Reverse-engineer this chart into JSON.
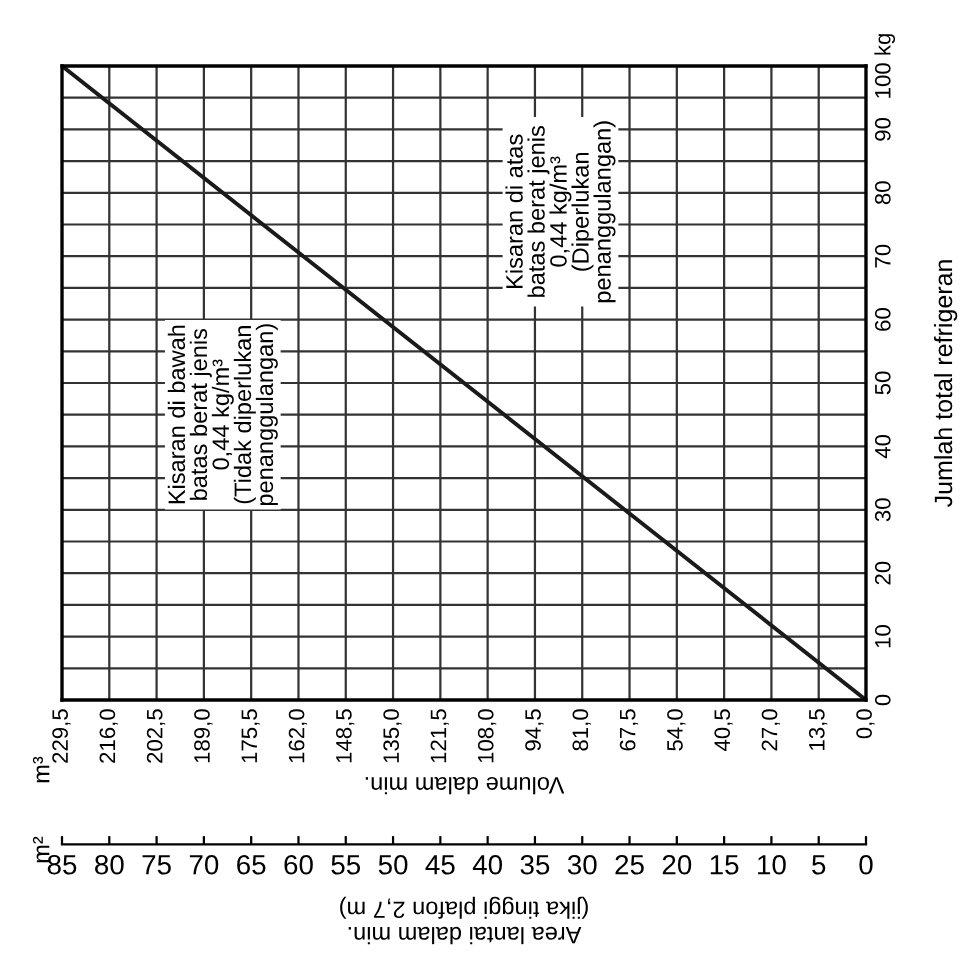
{
  "chart_data": {
    "type": "line",
    "xlabel": "Volume dalam min.",
    "x2label": "Area lantai dalam min.\n(jika tinggi plafon 2,7 m)",
    "ylabel": "Jumlah total refrigeran",
    "series": [
      {
        "color": "#1a1a1a",
        "x": [
          0,
          229.5
        ],
        "values": [
          0,
          100
        ]
      }
    ],
    "xlim": [
      229.5,
      0
    ],
    "xticks": [
      {
        "value": 229.5,
        "label": "229,5"
      },
      {
        "value": 216,
        "label": "216,0"
      },
      {
        "value": 202.5,
        "label": "202,5"
      },
      {
        "value": 189,
        "label": "189,0"
      },
      {
        "value": 175.5,
        "label": "175,5"
      },
      {
        "value": 162,
        "label": "162,0"
      },
      {
        "value": 148.5,
        "label": "148,5"
      },
      {
        "value": 135,
        "label": "135,0"
      },
      {
        "value": 121.5,
        "label": "121,5"
      },
      {
        "value": 108,
        "label": "108,0"
      },
      {
        "value": 94.5,
        "label": "94,5"
      },
      {
        "value": 81,
        "label": "81,0"
      },
      {
        "value": 67.5,
        "label": "67,5"
      },
      {
        "value": 54,
        "label": "54,0"
      },
      {
        "value": 40.5,
        "label": "40,5"
      },
      {
        "value": 27,
        "label": "27,0"
      },
      {
        "value": 13.5,
        "label": "13,5"
      },
      {
        "value": 0,
        "label": "0,0"
      }
    ],
    "x2lim": [
      85,
      0
    ],
    "x2ticks": [
      85,
      80,
      75,
      70,
      65,
      60,
      55,
      50,
      45,
      40,
      35,
      30,
      25,
      20,
      15,
      10,
      5,
      0
    ],
    "ylim": [
      0,
      100
    ],
    "yticks": [
      0,
      {
        "value": 5,
        "label": null
      },
      10,
      {
        "value": 15,
        "label": null
      },
      20,
      {
        "value": 25,
        "label": null
      },
      30,
      {
        "value": 35,
        "label": null
      },
      40,
      {
        "value": 45,
        "label": null
      },
      50,
      {
        "value": 55,
        "label": null
      },
      60,
      {
        "value": 65,
        "label": null
      },
      70,
      {
        "value": 75,
        "label": null
      },
      80,
      {
        "value": 85,
        "label": null
      },
      90,
      {
        "value": 95,
        "label": null
      },
      {
        "value": 100,
        "label": "100 kg"
      }
    ],
    "grid": true,
    "marker": "none",
    "line_style": "solid",
    "annotations": [
      "Kisaran di bawah\nbatas berat jenis\n0,44 kg/m³\n(Tidak diperlukan\npenanggulangan)",
      "Kisaran di atas\nbatas berat jenis\n0,44 kg/m³\n(Diperlukan\npenanggulangan)",
      "m³",
      "m²"
    ]
  }
}
